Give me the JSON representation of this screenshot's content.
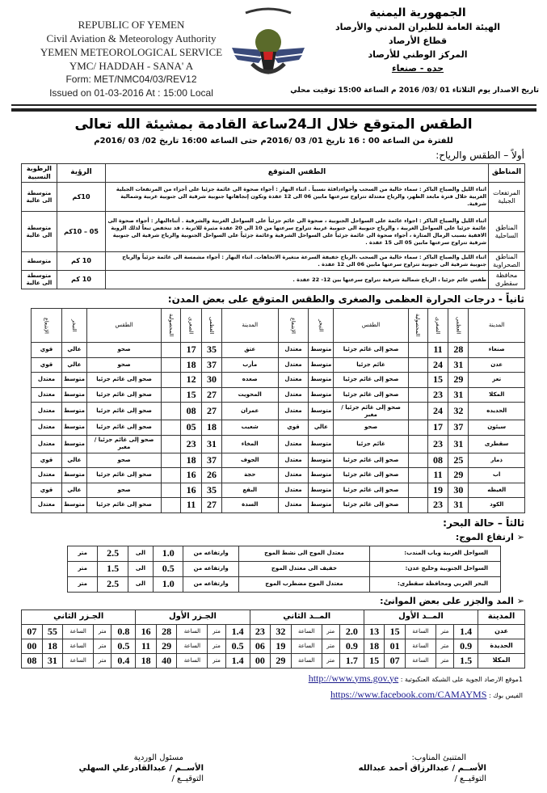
{
  "header_en": {
    "line1": "REPUBLIC OF YEMEN",
    "line2": "Civil Aviation & Meteorology Authority",
    "line3": "YEMEN METEOROLOGICAL SERVICE",
    "line4": "YMC/ HADDAH - SANA' A",
    "form": "Form: MET/NMC04/03/REV12",
    "issued": "Issued on  01-03-2016  At : 15:00  Local"
  },
  "header_ar": {
    "line1": "الجمهورية اليمنية",
    "line2": "الهيئة العامة للطيران المدني والأرصاد",
    "line3": "قطاع الأرصاد",
    "line4": "المركز الوطني للأرصاد",
    "line5": "حده - صنعاء",
    "issued": "تاريخ الاصدار يوم الثلاثاء  01 /03/ 2016 م  الساعة  15:00  توقيت محلي"
  },
  "logo": {
    "basmala": "بسم الله الرحمن الرحيم",
    "text": "CIVIL AVIATION & METEOROLOGY"
  },
  "title": "الطقس المتوقع خلال الـ24ساعة القادمة بمشيئة الله تعالى",
  "period": "للفترة من الساعة  00 : 16 تاريخ 01/ 03 /2016م حتى الساعة  16:00 تاريخ  02/ 03 /2016م",
  "section1": {
    "heading": "أولاً – الطقس والرياح:",
    "headers": [
      "المناطق",
      "الطقس المتوقع",
      "الرؤية",
      "الرطوبة النسبية"
    ],
    "rows": [
      {
        "region": "المرتفعات الجبلية",
        "forecast": "اثناء الليل والصباح الباكر : سماء خالية من السحب وأجواءدافئة نسبياً . اثناء النهار : أجواء صحوة الى غائمة جزئيا على أجزاء من المرتفعات الجبلية الغربية خلال فترة مابعد الظهر، والرياح معتدلة تتراوح سرعتها مابين 06 الى 12 عقدة وتكون إتجاهاتها جنوبية شرقية الى جنوبية غربية وشمالية شرقية.",
        "visibility": "10كم",
        "humidity": "متوسطة الى عالية"
      },
      {
        "region": "المناطق الساحلية",
        "forecast": "اثناء الليل والصباح الباكر : اجواء غائمة على السواحل الجنوبية ، صحوة الى غائم جزئياً على السواحل الغربية والشرقية . أثناءالنهار : أجواء صحوة الى غائمة جزئيا على السواحل الغربية ، والرياح جنوبية الى جنوبية غربية تتراوح سرعتها من 10 الى 20 عقدة مثيرة للاتربة ، قد تنخفض تبعاً لذلك الروية الافقية بسبب الرمال المثارة ، أجواء صحوة الى غائمة جزئياً على السواحل الشرقية وغائمة جزئياً على السواحل الجنوبية والرياح شرقية الى جنوبية شرقية تتراوح سرعتها مابين 05 الى 15 عقدة .",
        "visibility": "05 – 10كم",
        "humidity": "متوسطة الى عالية"
      },
      {
        "region": "المناطق الصحراوية",
        "forecast": "اثناء الليل والصباح الباكر : سماء خالية من السحب ،الرياح خفيفة السرعة متغيرة الاتجاهات. اثناء النهار : أجواء مشمسة الى غائمة جزئياً والرياح جنوبية شرقية الى جنوبية تتراوح سرعتها مابين 06 الى 12 عقدة .",
        "visibility": "10 كم",
        "humidity": "متوسطة"
      },
      {
        "region": "محافظة سقطرى",
        "forecast": "طقس غائم جزئيا ، الرياح شمالية شرقية  تتراوح سرعتها بين 12- 22  عقدة .",
        "visibility": "10 كم",
        "humidity": "متوسطة الى عالية"
      }
    ]
  },
  "section2": {
    "heading": "ثانياً - درجات الحرارة العظمى والصغرى والطقس المتوقع على بعض المدن:",
    "headers": [
      "المدينة",
      "العظمى",
      "الصغرى",
      "المحصولية",
      "الطقس",
      "التبخر",
      "الإشعاع"
    ],
    "rows": [
      [
        [
          "صنعاء",
          "28",
          "11",
          "",
          "صحو إلى غائم جزئيا",
          "متوسط",
          "معتدل"
        ],
        [
          "عتق",
          "35",
          "17",
          "",
          "صحو",
          "عالي",
          "قوي"
        ]
      ],
      [
        [
          "عدن",
          "31",
          "24",
          "",
          "غائم جزئيا",
          "متوسط",
          "معتدل"
        ],
        [
          "مأرب",
          "37",
          "18",
          "",
          "صحو",
          "عالي",
          "قوي"
        ]
      ],
      [
        [
          "تعز",
          "29",
          "15",
          "",
          "صحو إلى غائم جزئيا",
          "متوسط",
          "معتدل"
        ],
        [
          "صعده",
          "30",
          "12",
          "",
          "صحو إلى غائم جزئيا",
          "متوسط",
          "معتدل"
        ]
      ],
      [
        [
          "المكلا",
          "31",
          "23",
          "",
          "صحو إلى غائم جزئيا",
          "متوسط",
          "معتدل"
        ],
        [
          "المحويت",
          "27",
          "15",
          "",
          "صحو إلى غائم جزئيا",
          "متوسط",
          "معتدل"
        ]
      ],
      [
        [
          "الحديده",
          "32",
          "24",
          "",
          "صحو إلى غائم جزئيا / مغبر",
          "متوسط",
          "معتدل"
        ],
        [
          "عمران",
          "27",
          "08",
          "",
          "صحو إلى غائم جزئيا",
          "متوسط",
          "معتدل"
        ]
      ],
      [
        [
          "سيئون",
          "37",
          "17",
          "",
          "صحو",
          "عالي",
          "قوي"
        ],
        [
          "شعيب",
          "18",
          "05",
          "",
          "صحو إلى غائم جزئيا",
          "متوسط",
          "معتدل"
        ]
      ],
      [
        [
          "سقطرى",
          "31",
          "23",
          "",
          "غائم جزئيا",
          "متوسط",
          "معتدل"
        ],
        [
          "المخاء",
          "31",
          "23",
          "",
          "صحو إلى غائم جزئيا / مغبر",
          "متوسط",
          "معتدل"
        ]
      ],
      [
        [
          "ذمار",
          "25",
          "08",
          "",
          "صحو إلى غائم جزئيا",
          "متوسط",
          "معتدل"
        ],
        [
          "الجوف",
          "37",
          "18",
          "",
          "صحو",
          "عالي",
          "قوي"
        ]
      ],
      [
        [
          "اب",
          "29",
          "11",
          "",
          "صحو إلى غائم جزئيا",
          "متوسط",
          "معتدل"
        ],
        [
          "حجة",
          "26",
          "16",
          "",
          "صحو إلى غائم جزئيا",
          "متوسط",
          "معتدل"
        ]
      ],
      [
        [
          "الغيظه",
          "30",
          "19",
          "",
          "صحو إلى غائم جزئيا",
          "متوسط",
          "معتدل"
        ],
        [
          "البقع",
          "35",
          "16",
          "",
          "صحو",
          "عالي",
          "قوي"
        ]
      ],
      [
        [
          "الكود",
          "31",
          "23",
          "",
          "صحو إلى غائم جزئيا",
          "متوسط",
          "معتدل"
        ],
        [
          "السدة",
          "27",
          "11",
          "",
          "صحو إلى غائم جزئيا",
          "متوسط",
          "معتدل"
        ]
      ]
    ]
  },
  "section3": {
    "heading": "ثالثاً – حالة البحر:",
    "waves_heading": "ارتفاع الموج:",
    "waves": [
      [
        "السواحل الغربية وباب المندب:",
        "معتدل الموج الى نشط الموج",
        "وارتفاعه من",
        "1.0",
        "الى",
        "2.5",
        "متر"
      ],
      [
        "السواحل الجنوبية وخليج عدن:",
        "خفيف الى معتدل الموج",
        "وارتفاعه من",
        "0.5",
        "الى",
        "1.5",
        "متر"
      ],
      [
        "البحر العربي ومحافظة سقطرى:",
        "معتدل الموج مضطرب الموج",
        "وارتفاعه من",
        "1.0",
        "الى",
        "2.5",
        "متر"
      ]
    ],
    "tides_heading": "المد والجزر على بعض الموانئ:",
    "tide_headers": [
      "المدينة",
      "المــد الأول",
      "المــد الثاني",
      "الجـزر الأول",
      "الجـزر الثاني"
    ],
    "tides": [
      {
        "city": "عدن",
        "groups": [
          [
            "1.4",
            "متر",
            "الساعة",
            "15",
            "13"
          ],
          [
            "2.0",
            "متر",
            "الساعة",
            "32",
            "23"
          ],
          [
            "1.4",
            "متر",
            "الساعة",
            "28",
            "16"
          ],
          [
            "0.8",
            "متر",
            "الساعة",
            "55",
            "07"
          ]
        ]
      },
      {
        "city": "الحديدة",
        "groups": [
          [
            "0.9",
            "متر",
            "الساعة",
            "01",
            "18"
          ],
          [
            "0.9",
            "متر",
            "الساعة",
            "19",
            "06"
          ],
          [
            "0.5",
            "متر",
            "الساعة",
            "29",
            "11"
          ],
          [
            "0.5",
            "متر",
            "الساعة",
            "18",
            "00"
          ]
        ]
      },
      {
        "city": "المكلا",
        "groups": [
          [
            "1.5",
            "متر",
            "الساعة",
            "07",
            "15"
          ],
          [
            "1.7",
            "متر",
            "الساعة",
            "29",
            "00"
          ],
          [
            "1.4",
            "متر",
            "الساعة",
            "40",
            "18"
          ],
          [
            "0.4",
            "متر",
            "الساعة",
            "31",
            "08"
          ]
        ]
      }
    ]
  },
  "links": {
    "site_label": "1موقع الارصاد الجوية على الشبكة العنكبوتية :",
    "site": "http://www.yms.gov.ye",
    "fb_label": "الفيس بوك :",
    "fb": "https://www.facebook.com/CAMAYMS"
  },
  "signatures": {
    "forecaster": {
      "title": "المتنبئ المناوب:",
      "name": "الأســم / عبدالرزاق أحمد عبدالله",
      "sign": "التوقيــع /"
    },
    "shift": {
      "title": "مسئول الوردية",
      "name": "الأســم / عبدالقادرعلي السهلي",
      "sign": "التوقيــع /"
    }
  }
}
